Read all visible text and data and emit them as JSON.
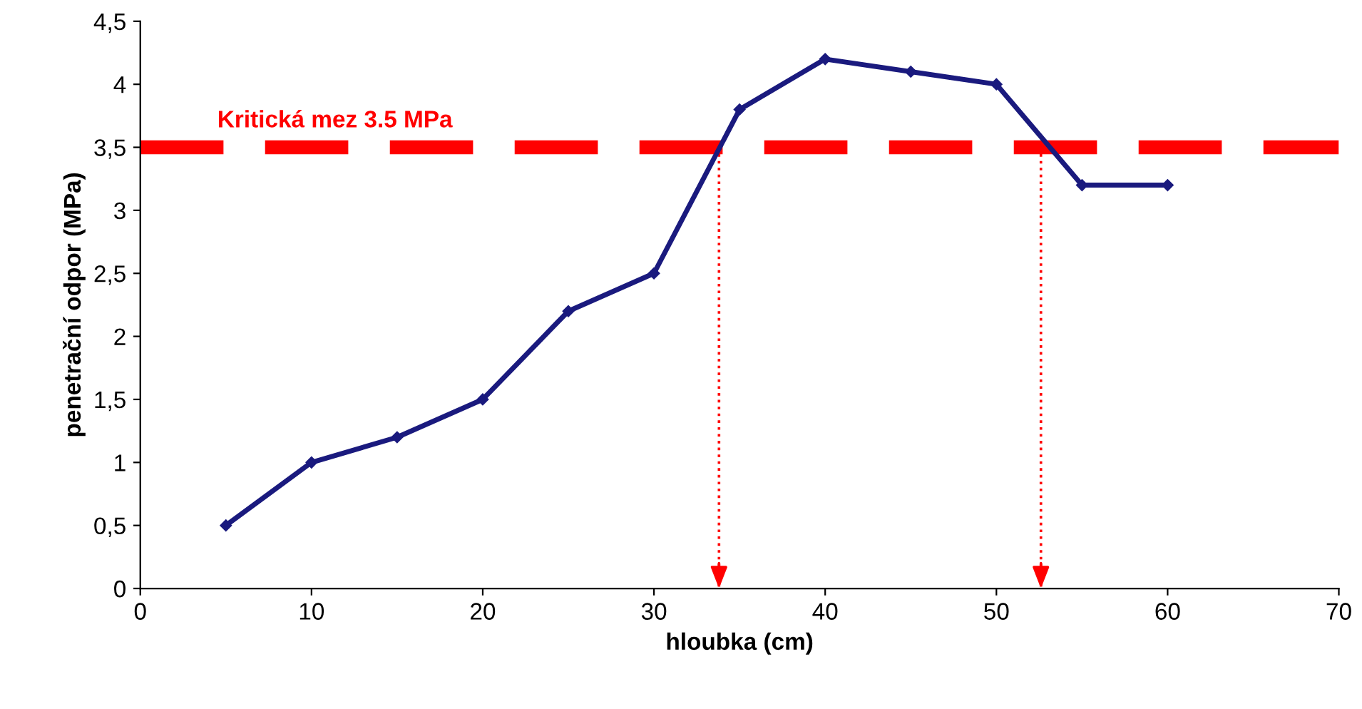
{
  "chart_data": {
    "type": "line",
    "xlabel": "hloubka (cm)",
    "ylabel": "penetrační odpor (MPa)",
    "x": [
      5,
      10,
      15,
      20,
      25,
      30,
      35,
      40,
      45,
      50,
      55,
      60
    ],
    "series": [
      {
        "color": "#1a1a7e",
        "values": [
          0.5,
          1.0,
          1.2,
          1.5,
          2.2,
          2.5,
          3.8,
          4.2,
          4.1,
          4.0,
          3.2,
          3.2
        ]
      }
    ],
    "marker": "diamond",
    "line_style": "solid",
    "grid": false,
    "xlim": [
      0,
      70
    ],
    "xticks": [
      0,
      10,
      20,
      30,
      40,
      50,
      60,
      70
    ],
    "ylim": [
      0,
      4.5
    ],
    "yticks": [
      0,
      {
        "value": 0.5,
        "label": "0,5"
      },
      1,
      {
        "value": 1.5,
        "label": "1,5"
      },
      2,
      {
        "value": 2.5,
        "label": "2,5"
      },
      3,
      {
        "value": 3.5,
        "label": "3,5"
      },
      4,
      {
        "value": 4.5,
        "label": "4,5"
      }
    ],
    "ref_lines": [
      {
        "axis": "y",
        "value": 3.5,
        "label": "Kritická mez 3.5 MPa",
        "color": "#ff0000",
        "line_style": "dashed"
      },
      {
        "axis": "x",
        "value": 33.8,
        "color": "#ff0000",
        "line_style": "dotted"
      },
      {
        "axis": "x",
        "value": 52.6,
        "color": "#ff0000",
        "line_style": "dotted"
      }
    ]
  }
}
